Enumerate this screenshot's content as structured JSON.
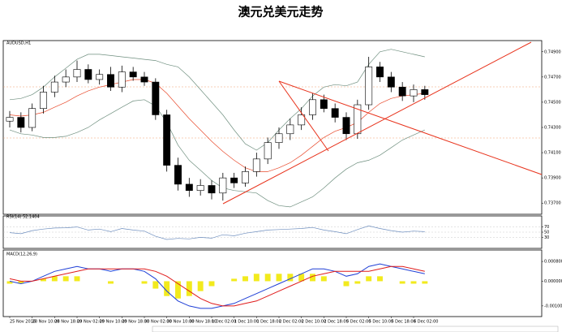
{
  "title": "澳元兑美元走势",
  "chart_data": [
    {
      "type": "candlestick",
      "label": "AUDUSD,H1",
      "categories": [
        "25 Nov 2016",
        null,
        "28 Nov 10:00",
        null,
        "28 Nov 18:00",
        null,
        "29 Nov 02:00",
        null,
        "29 Nov 10:00",
        null,
        "29 Nov 18:00",
        null,
        "30 Nov 02:00",
        null,
        "30 Nov 10:00",
        null,
        "30 Nov 18:00",
        null,
        "1 Dec 02:00",
        null,
        "1 Dec 10:00",
        null,
        "1 Dec 18:00",
        null,
        "2 Dec 02:00",
        null,
        "2 Dec 10:00",
        null,
        "2 Dec 18:00",
        null,
        "5 Dec 02:00",
        null,
        "5 Dec 10:00",
        null,
        "5 Dec 18:00",
        null,
        "6 Dec 02:00",
        null
      ],
      "open": [
        0.7435,
        0.7438,
        0.743,
        0.7445,
        0.7458,
        0.7466,
        0.747,
        0.7476,
        0.7468,
        0.7472,
        0.7462,
        0.7474,
        0.747,
        0.7466,
        0.744,
        0.74,
        0.7385,
        0.738,
        0.7384,
        0.7378,
        0.739,
        0.7386,
        0.7395,
        0.7405,
        0.7418,
        0.7425,
        0.7432,
        0.744,
        0.7452,
        0.7445,
        0.7438,
        0.7425,
        0.7448,
        0.7478,
        0.747,
        0.7462,
        0.7455,
        0.746
      ],
      "high": [
        0.7443,
        0.7442,
        0.7449,
        0.7463,
        0.7471,
        0.7476,
        0.7483,
        0.748,
        0.7476,
        0.7478,
        0.7479,
        0.7478,
        0.7474,
        0.7469,
        0.7444,
        0.7406,
        0.739,
        0.7389,
        0.7388,
        0.7394,
        0.7394,
        0.7399,
        0.741,
        0.7422,
        0.743,
        0.7437,
        0.7446,
        0.7457,
        0.7456,
        0.7449,
        0.7442,
        0.7452,
        0.7486,
        0.7482,
        0.7474,
        0.7466,
        0.7464,
        0.7463
      ],
      "low": [
        0.743,
        0.7426,
        0.7427,
        0.7441,
        0.7454,
        0.7462,
        0.7466,
        0.7465,
        0.7464,
        0.7459,
        0.7458,
        0.7467,
        0.7463,
        0.7436,
        0.7395,
        0.738,
        0.7375,
        0.7376,
        0.7373,
        0.7372,
        0.7382,
        0.7383,
        0.7391,
        0.7401,
        0.7413,
        0.742,
        0.7428,
        0.7436,
        0.7442,
        0.7434,
        0.742,
        0.7421,
        0.7444,
        0.7466,
        0.7458,
        0.7451,
        0.745,
        0.7452
      ],
      "close": [
        0.7438,
        0.743,
        0.7445,
        0.7458,
        0.7466,
        0.747,
        0.7476,
        0.7468,
        0.7472,
        0.7462,
        0.7474,
        0.747,
        0.7466,
        0.744,
        0.74,
        0.7385,
        0.738,
        0.7384,
        0.7378,
        0.739,
        0.7386,
        0.7395,
        0.7405,
        0.7418,
        0.7425,
        0.7432,
        0.744,
        0.7452,
        0.7445,
        0.7438,
        0.7425,
        0.7448,
        0.7478,
        0.747,
        0.7462,
        0.7455,
        0.746,
        0.7456
      ],
      "color": "#000000",
      "series": [
        {
          "color": "#e8492b",
          "values": [
            0.744,
            0.7439,
            0.744,
            0.7442,
            0.7446,
            0.745,
            0.7455,
            0.7459,
            0.7462,
            0.7464,
            0.7466,
            0.7468,
            0.7468,
            0.7465,
            0.7457,
            0.7447,
            0.7437,
            0.7428,
            0.7419,
            0.7411,
            0.7404,
            0.7398,
            0.7395,
            0.7395,
            0.7398,
            0.7402,
            0.7408,
            0.7415,
            0.7422,
            0.7427,
            0.743,
            0.7434,
            0.7442,
            0.7449,
            0.7453,
            0.7455,
            0.7456,
            0.7457
          ]
        },
        {
          "color": "#6f8f7f",
          "values": [
            0.7452,
            0.7453,
            0.7456,
            0.7462,
            0.747,
            0.7477,
            0.7484,
            0.7488,
            0.7488,
            0.7487,
            0.7486,
            0.7485,
            0.7484,
            0.7483,
            0.748,
            0.7478,
            0.747,
            0.746,
            0.745,
            0.744,
            0.7428,
            0.7417,
            0.7412,
            0.7418,
            0.7428,
            0.7437,
            0.7445,
            0.7455,
            0.7462,
            0.7464,
            0.7463,
            0.7466,
            0.748,
            0.749,
            0.7492,
            0.749,
            0.7488,
            0.7486
          ]
        },
        {
          "color": "#6f8f7f",
          "values": [
            0.7428,
            0.7425,
            0.7424,
            0.7422,
            0.7422,
            0.7423,
            0.7426,
            0.743,
            0.7436,
            0.7441,
            0.7446,
            0.7451,
            0.7452,
            0.7447,
            0.7434,
            0.7416,
            0.7404,
            0.7396,
            0.7388,
            0.7382,
            0.738,
            0.7379,
            0.7378,
            0.7372,
            0.7368,
            0.7367,
            0.7371,
            0.7375,
            0.7382,
            0.739,
            0.7397,
            0.7402,
            0.7404,
            0.7408,
            0.7414,
            0.742,
            0.7424,
            0.7428
          ]
        }
      ],
      "ylim": [
        0.7365,
        0.7495
      ],
      "yticks": [
        {
          "value": 0.737,
          "label": "0.73700"
        },
        {
          "value": 0.739,
          "label": "0.73900"
        },
        {
          "value": 0.741,
          "label": "0.74100"
        },
        {
          "value": 0.743,
          "label": "0.74300"
        },
        {
          "value": 0.745,
          "label": "0.74500"
        },
        {
          "value": 0.747,
          "label": "0.74700"
        },
        {
          "value": 0.749,
          "label": "0.74900"
        }
      ]
    },
    {
      "type": "line",
      "label": "RSI(14) 52.1404",
      "color": "#6f8fbf",
      "values": [
        48,
        44,
        56,
        62,
        66,
        67,
        70,
        58,
        62,
        52,
        64,
        58,
        54,
        34,
        22,
        26,
        24,
        30,
        27,
        40,
        36,
        46,
        52,
        58,
        60,
        62,
        64,
        68,
        58,
        52,
        44,
        60,
        74,
        64,
        56,
        50,
        54,
        52
      ],
      "ylim": [
        0,
        100
      ],
      "yticks": [
        30,
        50,
        70
      ]
    },
    {
      "type": "macd",
      "label": "MACD(12,26,9)",
      "color": "#f2ea1d",
      "values": [
        -0.0001,
        -0.0001,
        0,
        0.0001,
        0.0002,
        0.0002,
        0.0002,
        0,
        0,
        -0.0001,
        0,
        0,
        -0.0001,
        -0.0003,
        -0.0006,
        -0.0007,
        -0.0006,
        -0.0004,
        -0.0002,
        0,
        0.0001,
        0.0002,
        0.0003,
        0.0003,
        0.0003,
        0.0003,
        0.0003,
        0.0003,
        0.0002,
        0,
        -0.0002,
        -0.0001,
        0.0002,
        0.0002,
        0,
        -0.0001,
        -0.0001,
        -0.0001
      ],
      "series": [
        {
          "color": "#1f3fd6",
          "values": [
            0,
            -0.0001,
            0,
            0.0002,
            0.0004,
            0.0005,
            0.0006,
            0.0005,
            0.0005,
            0.0004,
            0.0005,
            0.0005,
            0.0004,
            0.0001,
            -0.0004,
            -0.0008,
            -0.001,
            -0.0011,
            -0.0011,
            -0.001,
            -0.0009,
            -0.0007,
            -0.0005,
            -0.0003,
            -0.0001,
            0.0001,
            0.0003,
            0.0005,
            0.0005,
            0.0004,
            0.0002,
            0.0003,
            0.0006,
            0.0007,
            0.0006,
            0.0005,
            0.0004,
            0.0003
          ]
        },
        {
          "color": "#e01b1b",
          "values": [
            0.0001,
            0,
            0,
            0.0001,
            0.0002,
            0.0003,
            0.0004,
            0.0005,
            0.0005,
            0.0005,
            0.0005,
            0.0005,
            0.0005,
            0.0004,
            0.0002,
            -0.0001,
            -0.0004,
            -0.0007,
            -0.0009,
            -0.001,
            -0.001,
            -0.0009,
            -0.0008,
            -0.0006,
            -0.0004,
            -0.0002,
            0,
            0.0002,
            0.0003,
            0.0004,
            0.0004,
            0.0004,
            0.0004,
            0.0005,
            0.0006,
            0.0006,
            0.0005,
            0.0004
          ]
        }
      ],
      "ylim": [
        -0.0013,
        0.001
      ],
      "yticks": [
        {
          "value": 0.0008,
          "label": "0.000800"
        },
        {
          "value": 0,
          "label": "0.000000"
        },
        {
          "value": -0.001,
          "label": "-0.001000"
        }
      ]
    }
  ]
}
